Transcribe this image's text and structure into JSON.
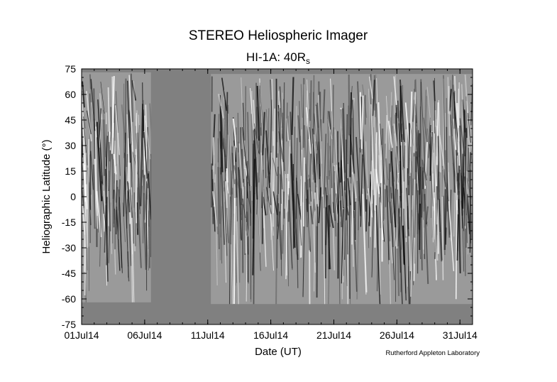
{
  "chart_data": {
    "type": "heatmap",
    "title": "STEREO Heliospheric Imager",
    "subtitle": {
      "main": "HI-1A: 40R",
      "subscript": "s"
    },
    "xlabel": "Date (UT)",
    "ylabel": "Heliographic Latitude (°)",
    "credit": "Rutherford Appleton Laboratory",
    "x_ticks": [
      "01Jul14",
      "06Jul14",
      "11Jul14",
      "16Jul14",
      "21Jul14",
      "26Jul14",
      "31Jul14"
    ],
    "y_ticks": [
      75,
      60,
      45,
      30,
      15,
      0,
      -15,
      -30,
      -45,
      -60,
      -75
    ],
    "xlim": [
      "2014-07-01",
      "2014-08-01"
    ],
    "ylim": [
      -75,
      75
    ],
    "background_color": "#808080",
    "data_segments": [
      {
        "start": "2014-07-01",
        "end": "2014-07-06T12:00",
        "lat_min": -62,
        "lat_max": 73
      },
      {
        "start": "2014-07-11T06:00",
        "end": "2014-08-01",
        "lat_min": -63,
        "lat_max": 72
      }
    ]
  }
}
